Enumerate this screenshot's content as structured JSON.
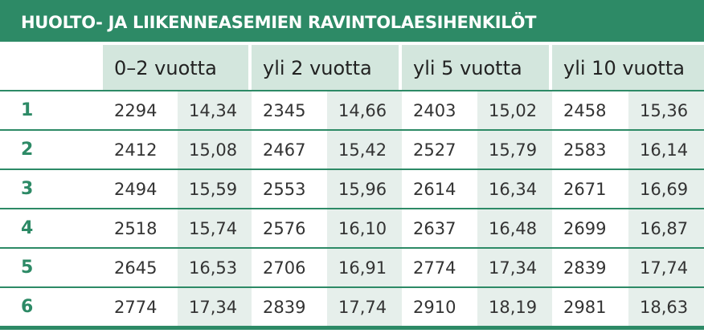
{
  "title": "HUOLTO- JA LIIKENNEASEMIEN RAVINTOLAESIHENKILÖT",
  "table": {
    "header": [
      "0–2 vuotta",
      "yli 2 vuotta",
      "yli 5 vuotta",
      "yli 10 vuotta"
    ],
    "rows": [
      {
        "label": "1",
        "cells": [
          "2294",
          "14,34",
          "2345",
          "14,66",
          "2403",
          "15,02",
          "2458",
          "15,36"
        ]
      },
      {
        "label": "2",
        "cells": [
          "2412",
          "15,08",
          "2467",
          "15,42",
          "2527",
          "15,79",
          "2583",
          "16,14"
        ]
      },
      {
        "label": "3",
        "cells": [
          "2494",
          "15,59",
          "2553",
          "15,96",
          "2614",
          "16,34",
          "2671",
          "16,69"
        ]
      },
      {
        "label": "4",
        "cells": [
          "2518",
          "15,74",
          "2576",
          "16,10",
          "2637",
          "16,48",
          "2699",
          "16,87"
        ]
      },
      {
        "label": "5",
        "cells": [
          "2645",
          "16,53",
          "2706",
          "16,91",
          "2774",
          "17,34",
          "2839",
          "17,74"
        ]
      },
      {
        "label": "6",
        "cells": [
          "2774",
          "17,34",
          "2839",
          "17,74",
          "2910",
          "18,19",
          "2981",
          "18,63"
        ]
      }
    ]
  }
}
